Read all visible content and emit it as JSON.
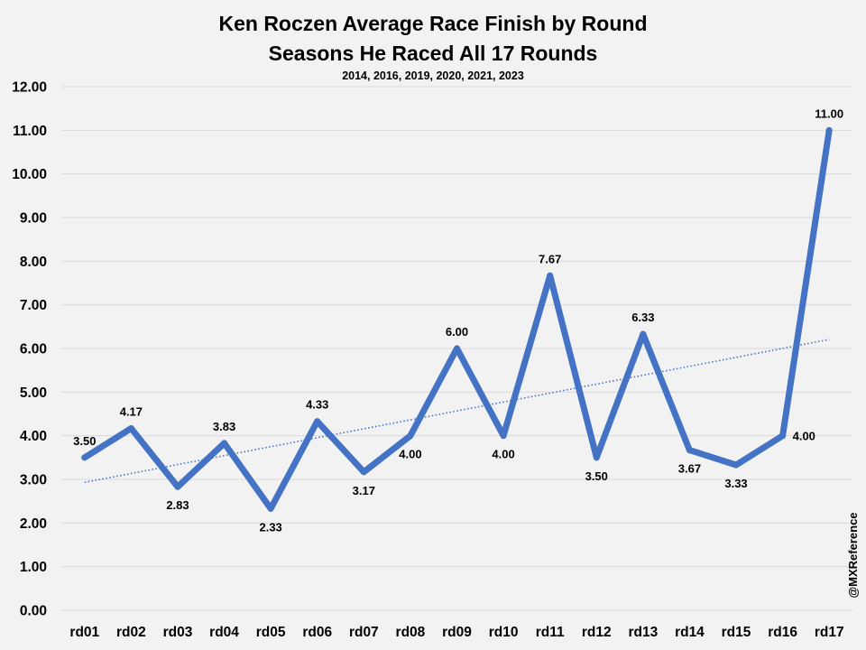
{
  "chart_data": {
    "type": "line",
    "title": [
      "Ken Roczen Average Race Finish by Round",
      "Seasons He Raced All 17 Rounds"
    ],
    "subtitle": "2014, 2016, 2019, 2020, 2021, 2023",
    "categories": [
      "rd01",
      "rd02",
      "rd03",
      "rd04",
      "rd05",
      "rd06",
      "rd07",
      "rd08",
      "rd09",
      "rd10",
      "rd11",
      "rd12",
      "rd13",
      "rd14",
      "rd15",
      "rd16",
      "rd17"
    ],
    "series": [
      {
        "values": [
          3.5,
          4.17,
          2.83,
          3.83,
          2.33,
          4.33,
          3.17,
          4.0,
          6.0,
          4.0,
          7.67,
          3.5,
          6.33,
          3.67,
          3.33,
          4.0,
          11.0
        ],
        "data_labels": [
          "3.50",
          "4.17",
          "2.83",
          "3.83",
          "2.33",
          "4.33",
          "3.17",
          "4.00",
          "6.00",
          "4.00",
          "7.67",
          "3.50",
          "6.33",
          "3.67",
          "3.33",
          "4.00",
          "11.00"
        ],
        "label_positions": [
          "above",
          "above",
          "below",
          "above",
          "below",
          "above",
          "below",
          "below",
          "above",
          "below",
          "above",
          "below",
          "above",
          "below",
          "below",
          "right",
          "above"
        ],
        "color": "#4472c4",
        "trendline": "linear",
        "trendline_style": "dotted"
      }
    ],
    "ylim": [
      0,
      12
    ],
    "yticks": [
      "0.00",
      "1.00",
      "2.00",
      "3.00",
      "4.00",
      "5.00",
      "6.00",
      "7.00",
      "8.00",
      "9.00",
      "10.00",
      "11.00",
      "12.00"
    ],
    "grid": true,
    "legend": "none",
    "xlabel": "",
    "ylabel": ""
  },
  "watermark": "@MXReference",
  "colors": {
    "background": "#f2f2f2",
    "gridline": "#d9d9d9",
    "series": "#4472c4",
    "trendline": "#4472c4"
  }
}
